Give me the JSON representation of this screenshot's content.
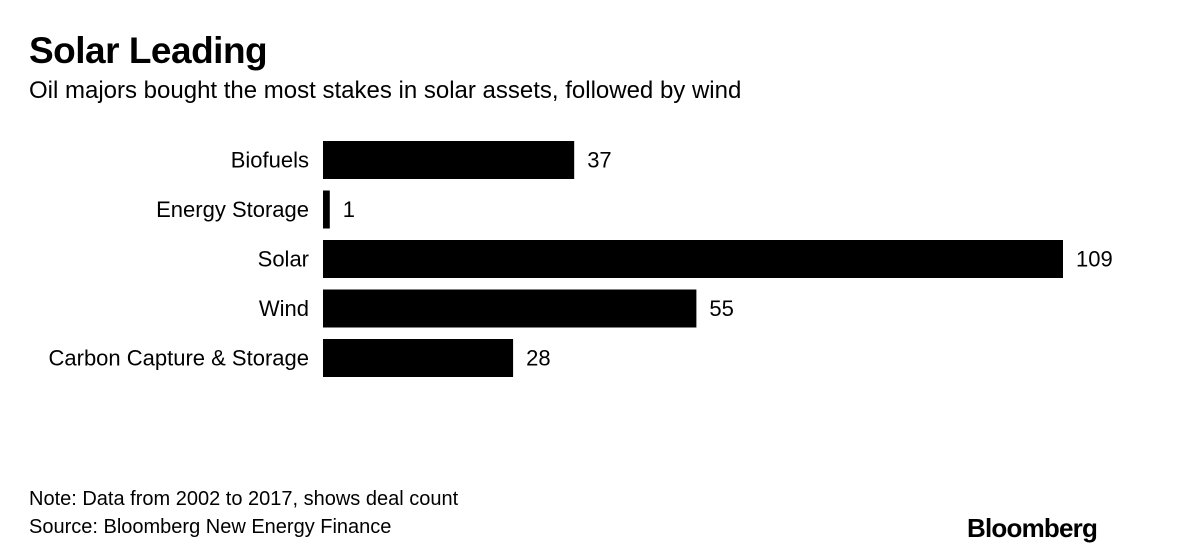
{
  "title": "Solar Leading",
  "subtitle": "Oil majors bought the most stakes in solar assets, followed by wind",
  "chart_data": {
    "type": "bar",
    "orientation": "horizontal",
    "title": "Solar Leading",
    "subtitle": "Oil majors bought the most stakes in solar assets, followed by wind",
    "categories": [
      "Biofuels",
      "Energy Storage",
      "Solar",
      "Wind",
      "Carbon Capture & Storage"
    ],
    "values": [
      37,
      1,
      109,
      55,
      28
    ],
    "xlim": [
      0,
      109
    ],
    "grid": false,
    "legend": "none",
    "bar_color": "#000000"
  },
  "footer": {
    "note": "Note: Data from 2002 to 2017, shows deal count",
    "source": "Source: Bloomberg New Energy Finance",
    "brand": "Bloomberg"
  }
}
